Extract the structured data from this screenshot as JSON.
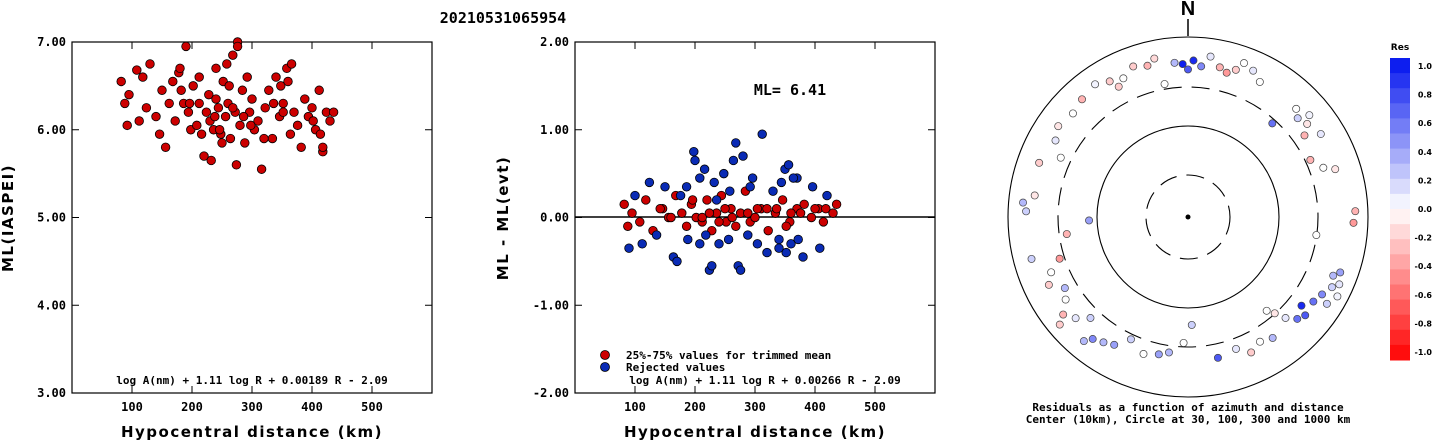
{
  "chart_data": [
    {
      "type": "scatter",
      "title": "20210531065954",
      "xlabel": "Hypocentral distance (km)",
      "ylabel": "ML(IASPEI)",
      "xlim": [
        0,
        600
      ],
      "ylim": [
        3.0,
        7.0
      ],
      "xticks": [
        "100",
        "200",
        "300",
        "400",
        "500"
      ],
      "yticks": [
        "3.00",
        "4.00",
        "5.00",
        "6.00",
        "7.00"
      ],
      "formula": "log A(nm) + 1.11 log R + 0.00189 R - 2.09",
      "marker_color": "#cc0000",
      "series": [
        {
          "x": [
            82,
            88,
            92,
            95,
            108,
            112,
            118,
            124,
            130,
            140,
            146,
            150,
            156,
            162,
            168,
            172,
            178,
            182,
            186,
            190,
            194,
            198,
            202,
            208,
            212,
            216,
            220,
            224,
            228,
            232,
            236,
            240,
            244,
            248,
            252,
            256,
            260,
            264,
            268,
            272,
            276,
            280,
            284,
            288,
            292,
            296,
            300,
            304,
            310,
            316,
            322,
            328,
            334,
            340,
            346,
            352,
            358,
            364,
            370,
            376,
            382,
            388,
            394,
            400,
            406,
            412,
            418,
            424,
            430,
            436,
            240,
            258,
            274,
            286,
            298,
            262,
            230,
            250,
            268,
            212,
            196,
            180,
            352,
            348,
            366,
            246,
            238,
            276,
            320,
            336,
            360,
            402,
            414,
            418
          ],
          "y": [
            6.55,
            6.3,
            6.05,
            6.4,
            6.68,
            6.1,
            6.6,
            6.25,
            6.75,
            6.15,
            5.95,
            6.45,
            5.8,
            6.3,
            6.55,
            6.1,
            6.65,
            6.45,
            6.3,
            6.95,
            6.2,
            6.0,
            6.5,
            6.05,
            6.3,
            5.95,
            5.7,
            6.2,
            6.4,
            5.65,
            6.0,
            6.7,
            6.25,
            5.95,
            6.55,
            6.15,
            6.3,
            5.9,
            6.85,
            6.2,
            7.0,
            6.05,
            6.45,
            5.85,
            6.6,
            6.2,
            6.35,
            6.0,
            6.1,
            5.55,
            6.25,
            6.45,
            5.9,
            6.6,
            6.15,
            6.3,
            6.7,
            5.95,
            6.2,
            6.05,
            5.8,
            6.35,
            6.15,
            6.25,
            6.0,
            6.45,
            5.75,
            6.2,
            6.1,
            6.2,
            6.35,
            6.75,
            5.6,
            6.15,
            6.05,
            6.5,
            6.1,
            5.85,
            6.25,
            6.6,
            6.3,
            6.7,
            6.2,
            6.5,
            6.75,
            6.0,
            6.15,
            6.95,
            5.9,
            6.3,
            6.55,
            6.1,
            5.95,
            5.8
          ]
        }
      ]
    },
    {
      "type": "scatter",
      "xlabel": "Hypocentral distance (km)",
      "ylabel": "ML - ML(evt)",
      "xlim": [
        0,
        600
      ],
      "ylim": [
        -2.0,
        2.0
      ],
      "xticks": [
        "100",
        "200",
        "300",
        "400",
        "500"
      ],
      "yticks": [
        "-2.00",
        "-1.00",
        "0.00",
        "1.00",
        "2.00"
      ],
      "annotation": "ML= 6.41",
      "formula": "log A(nm) + 1.11 log R + 0.00266 R - 2.09",
      "reference_line": 0.0,
      "series": [
        {
          "name": "25%-75% values for trimmed mean",
          "color": "#cc0000",
          "x": [
            82,
            88,
            95,
            108,
            118,
            130,
            146,
            156,
            168,
            178,
            186,
            194,
            202,
            212,
            220,
            228,
            236,
            244,
            252,
            260,
            268,
            276,
            284,
            292,
            300,
            310,
            322,
            334,
            346,
            358,
            370,
            382,
            394,
            406,
            418,
            430,
            436,
            240,
            262,
            250,
            212,
            196,
            336,
            360,
            414,
            224,
            288,
            304,
            320,
            352,
            376,
            400,
            142,
            160
          ],
          "y": [
            0.15,
            -0.1,
            0.05,
            -0.05,
            0.2,
            -0.15,
            0.1,
            0.0,
            0.25,
            0.05,
            -0.1,
            0.15,
            0.0,
            -0.05,
            0.2,
            -0.15,
            0.05,
            0.25,
            -0.05,
            0.1,
            -0.1,
            0.05,
            0.3,
            -0.05,
            0.0,
            0.1,
            -0.15,
            0.05,
            0.2,
            -0.05,
            0.1,
            0.15,
            0.0,
            0.1,
            0.1,
            0.05,
            0.15,
            -0.05,
            0.0,
            0.1,
            0.0,
            0.2,
            0.1,
            0.05,
            -0.05,
            0.05,
            0.05,
            0.1,
            0.1,
            -0.1,
            0.05,
            0.1,
            0.1,
            0.0
          ]
        },
        {
          "name": "Rejected values",
          "color": "#0a2bb5",
          "x": [
            90,
            100,
            112,
            124,
            136,
            150,
            164,
            176,
            188,
            198,
            208,
            216,
            224,
            232,
            240,
            248,
            256,
            264,
            272,
            280,
            288,
            296,
            304,
            312,
            320,
            330,
            340,
            350,
            360,
            370,
            380,
            396,
            408,
            420,
            186,
            200,
            228,
            236,
            268,
            276,
            292,
            344,
            352,
            356,
            364,
            372,
            170,
            208,
            218,
            258,
            340
          ],
          "y": [
            -0.35,
            0.25,
            -0.3,
            0.4,
            -0.2,
            0.35,
            -0.45,
            0.25,
            -0.25,
            0.75,
            -0.3,
            0.55,
            -0.6,
            0.4,
            -0.3,
            0.5,
            -0.25,
            0.65,
            -0.55,
            0.7,
            -0.2,
            0.45,
            -0.3,
            0.95,
            -0.4,
            0.3,
            -0.25,
            0.55,
            -0.3,
            0.45,
            -0.45,
            0.35,
            -0.35,
            0.25,
            0.35,
            0.65,
            -0.55,
            0.2,
            0.85,
            -0.6,
            0.35,
            0.4,
            -0.4,
            0.6,
            0.45,
            -0.25,
            -0.5,
            0.45,
            -0.2,
            0.3,
            -0.35
          ]
        }
      ]
    },
    {
      "type": "scatter",
      "projection": "polar-azimuth",
      "north_label": "N",
      "caption": "Residuals as a function of azimuth and distance",
      "caption2": "Center (10km), Circle at 30, 100, 300 and 1000 km",
      "colorbar_label": "Res",
      "colorbar_ticks": [
        "1.0",
        "0.8",
        "0.6",
        "0.4",
        "0.2",
        "0.0",
        "-0.2",
        "-0.4",
        "-0.6",
        "-0.8",
        "-1.0"
      ],
      "colors": {
        "positive": "#0011ee",
        "zero": "#ffffff",
        "negative": "#ff0000"
      },
      "rings": [
        {
          "radius_km": 30,
          "style": "dashed"
        },
        {
          "radius_km": 100,
          "style": "solid"
        },
        {
          "radius_km": 300,
          "style": "dashed"
        },
        {
          "radius_km": 1000,
          "style": "solid"
        }
      ],
      "points": [
        {
          "az": 358,
          "r": 0.85,
          "res": 0.95
        },
        {
          "az": 2,
          "r": 0.87,
          "res": 0.9
        },
        {
          "az": 0,
          "r": 0.82,
          "res": 0.7
        },
        {
          "az": 5,
          "r": 0.84,
          "res": 0.5
        },
        {
          "az": 355,
          "r": 0.86,
          "res": 0.3
        },
        {
          "az": 8,
          "r": 0.9,
          "res": 0.1
        },
        {
          "az": 12,
          "r": 0.85,
          "res": -0.3
        },
        {
          "az": 15,
          "r": 0.83,
          "res": -0.4
        },
        {
          "az": 18,
          "r": 0.86,
          "res": -0.2
        },
        {
          "az": 20,
          "r": 0.91,
          "res": 0.0
        },
        {
          "az": 24,
          "r": 0.89,
          "res": 0.1
        },
        {
          "az": 28,
          "r": 0.85,
          "res": 0.0
        },
        {
          "az": 340,
          "r": 0.89,
          "res": -0.2
        },
        {
          "az": 345,
          "r": 0.87,
          "res": -0.3
        },
        {
          "az": 348,
          "r": 0.9,
          "res": -0.15
        },
        {
          "az": 335,
          "r": 0.85,
          "res": 0.0
        },
        {
          "az": 330,
          "r": 0.87,
          "res": -0.2
        },
        {
          "az": 325,
          "r": 0.9,
          "res": 0.05
        },
        {
          "az": 350,
          "r": 0.75,
          "res": 0.0
        },
        {
          "az": 45,
          "r": 0.85,
          "res": 0.0
        },
        {
          "az": 48,
          "r": 0.82,
          "res": 0.2
        },
        {
          "az": 50,
          "r": 0.88,
          "res": 0.05
        },
        {
          "az": 52,
          "r": 0.84,
          "res": -0.1
        },
        {
          "az": 55,
          "r": 0.79,
          "res": -0.3
        },
        {
          "az": 42,
          "r": 0.7,
          "res": 0.6
        },
        {
          "az": 58,
          "r": 0.87,
          "res": 0.1
        },
        {
          "az": 65,
          "r": 0.75,
          "res": -0.3
        },
        {
          "az": 70,
          "r": 0.8,
          "res": 0.0
        },
        {
          "az": 72,
          "r": 0.86,
          "res": -0.1
        },
        {
          "az": 88,
          "r": 0.93,
          "res": -0.3
        },
        {
          "az": 92,
          "r": 0.92,
          "res": -0.4
        },
        {
          "az": 98,
          "r": 0.72,
          "res": 0.0
        },
        {
          "az": 110,
          "r": 0.9,
          "res": 0.4
        },
        {
          "az": 112,
          "r": 0.87,
          "res": 0.3
        },
        {
          "az": 114,
          "r": 0.92,
          "res": 0.1
        },
        {
          "az": 116,
          "r": 0.89,
          "res": 0.2
        },
        {
          "az": 118,
          "r": 0.94,
          "res": 0.05
        },
        {
          "az": 120,
          "r": 0.86,
          "res": 0.5
        },
        {
          "az": 122,
          "r": 0.91,
          "res": 0.2
        },
        {
          "az": 124,
          "r": 0.84,
          "res": 0.6
        },
        {
          "az": 128,
          "r": 0.8,
          "res": 0.9
        },
        {
          "az": 130,
          "r": 0.85,
          "res": 0.7
        },
        {
          "az": 133,
          "r": 0.83,
          "res": 0.6
        },
        {
          "az": 136,
          "r": 0.78,
          "res": 0.1
        },
        {
          "az": 138,
          "r": 0.72,
          "res": -0.1
        },
        {
          "az": 140,
          "r": 0.68,
          "res": 0.0
        },
        {
          "az": 145,
          "r": 0.82,
          "res": 0.3
        },
        {
          "az": 150,
          "r": 0.8,
          "res": 0.0
        },
        {
          "az": 155,
          "r": 0.83,
          "res": -0.2
        },
        {
          "az": 160,
          "r": 0.78,
          "res": 0.1
        },
        {
          "az": 168,
          "r": 0.8,
          "res": 0.7
        },
        {
          "az": 178,
          "r": 0.6,
          "res": 0.2
        },
        {
          "az": 182,
          "r": 0.7,
          "res": 0.0
        },
        {
          "az": 188,
          "r": 0.76,
          "res": 0.3
        },
        {
          "az": 192,
          "r": 0.78,
          "res": 0.4
        },
        {
          "az": 198,
          "r": 0.8,
          "res": 0.0
        },
        {
          "az": 205,
          "r": 0.75,
          "res": 0.2
        },
        {
          "az": 210,
          "r": 0.82,
          "res": 0.4
        },
        {
          "az": 214,
          "r": 0.84,
          "res": 0.3
        },
        {
          "az": 218,
          "r": 0.86,
          "res": 0.5
        },
        {
          "az": 220,
          "r": 0.9,
          "res": 0.3
        },
        {
          "az": 224,
          "r": 0.78,
          "res": 0.2
        },
        {
          "az": 228,
          "r": 0.84,
          "res": 0.1
        },
        {
          "az": 232,
          "r": 0.88,
          "res": -0.3
        },
        {
          "az": 236,
          "r": 0.82,
          "res": 0.0
        },
        {
          "az": 240,
          "r": 0.79,
          "res": 0.3
        },
        {
          "az": 244,
          "r": 0.86,
          "res": -0.2
        },
        {
          "az": 248,
          "r": 0.82,
          "res": 0.0
        },
        {
          "az": 252,
          "r": 0.75,
          "res": -0.4
        },
        {
          "az": 255,
          "r": 0.9,
          "res": 0.2
        },
        {
          "az": 262,
          "r": 0.68,
          "res": -0.3
        },
        {
          "az": 268,
          "r": 0.55,
          "res": 0.4
        },
        {
          "az": 272,
          "r": 0.9,
          "res": 0.2
        },
        {
          "az": 275,
          "r": 0.92,
          "res": 0.3
        },
        {
          "az": 278,
          "r": 0.86,
          "res": -0.1
        },
        {
          "az": 290,
          "r": 0.88,
          "res": -0.2
        },
        {
          "az": 295,
          "r": 0.78,
          "res": 0.0
        },
        {
          "az": 300,
          "r": 0.85,
          "res": 0.1
        },
        {
          "az": 305,
          "r": 0.88,
          "res": -0.1
        },
        {
          "az": 312,
          "r": 0.86,
          "res": 0.0
        },
        {
          "az": 318,
          "r": 0.88,
          "res": -0.3
        },
        {
          "az": 332,
          "r": 0.82,
          "res": -0.2
        },
        {
          "az": 230,
          "r": 0.93,
          "res": -0.2
        }
      ]
    }
  ]
}
